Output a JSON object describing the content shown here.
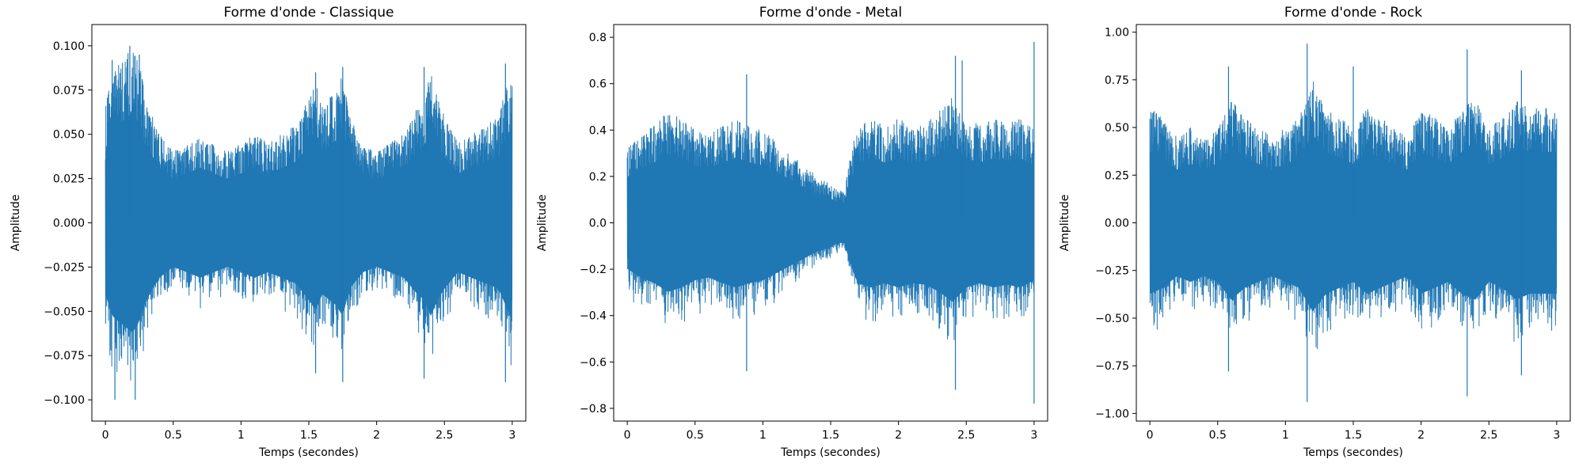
{
  "chart_data": [
    {
      "type": "line",
      "title": "Forme d'onde - Classique",
      "xlabel": "Temps (secondes)",
      "ylabel": "Amplitude",
      "xlim": [
        -0.1,
        3.1
      ],
      "ylim": [
        -0.112,
        0.112
      ],
      "xticks": [
        0,
        0.5,
        1,
        1.5,
        2,
        2.5,
        3
      ],
      "xtick_labels": [
        "0",
        "0.5",
        "1",
        "1.5",
        "2",
        "2.5",
        "3"
      ],
      "yticks": [
        -0.1,
        -0.075,
        -0.05,
        -0.025,
        0,
        0.025,
        0.05,
        0.075,
        0.1
      ],
      "ytick_labels": [
        "−0.100",
        "−0.075",
        "−0.050",
        "−0.025",
        "0.000",
        "0.025",
        "0.050",
        "0.075",
        "0.100"
      ],
      "grid": false,
      "color": "#1f77b4",
      "series": [
        {
          "envelope_time": [
            0,
            0.05,
            0.1,
            0.15,
            0.2,
            0.25,
            0.3,
            0.35,
            0.4,
            0.5,
            0.6,
            0.7,
            0.8,
            0.9,
            1.0,
            1.1,
            1.2,
            1.3,
            1.4,
            1.5,
            1.55,
            1.6,
            1.7,
            1.75,
            1.8,
            1.9,
            2.0,
            2.1,
            2.2,
            2.3,
            2.35,
            2.4,
            2.45,
            2.5,
            2.6,
            2.7,
            2.8,
            2.9,
            2.95,
            3.0
          ],
          "envelope_amplitude": [
            0.065,
            0.085,
            0.09,
            0.095,
            0.1,
            0.09,
            0.07,
            0.06,
            0.05,
            0.04,
            0.045,
            0.05,
            0.045,
            0.04,
            0.045,
            0.05,
            0.045,
            0.05,
            0.055,
            0.07,
            0.08,
            0.065,
            0.075,
            0.085,
            0.06,
            0.045,
            0.04,
            0.045,
            0.05,
            0.065,
            0.07,
            0.085,
            0.07,
            0.06,
            0.045,
            0.05,
            0.055,
            0.06,
            0.075,
            0.09
          ],
          "peaks": [
            {
              "x": 0.05,
              "y": 0.092
            },
            {
              "x": 0.07,
              "y": -0.1
            },
            {
              "x": 0.18,
              "y": 0.1
            },
            {
              "x": 0.25,
              "y": 0.095
            },
            {
              "x": 0.22,
              "y": -0.1
            },
            {
              "x": 1.55,
              "y": 0.085
            },
            {
              "x": 1.55,
              "y": -0.085
            },
            {
              "x": 1.75,
              "y": 0.088
            },
            {
              "x": 1.75,
              "y": -0.09
            },
            {
              "x": 2.35,
              "y": 0.088
            },
            {
              "x": 2.35,
              "y": -0.088
            },
            {
              "x": 2.95,
              "y": 0.09
            },
            {
              "x": 2.95,
              "y": -0.09
            }
          ]
        }
      ]
    },
    {
      "type": "line",
      "title": "Forme d'onde - Metal",
      "xlabel": "Temps (secondes)",
      "ylabel": "Amplitude",
      "xlim": [
        -0.1,
        3.1
      ],
      "ylim": [
        -0.855,
        0.855
      ],
      "xticks": [
        0,
        0.5,
        1,
        1.5,
        2,
        2.5,
        3
      ],
      "xtick_labels": [
        "0",
        "0.5",
        "1",
        "1.5",
        "2",
        "2.5",
        "3"
      ],
      "yticks": [
        -0.8,
        -0.6,
        -0.4,
        -0.2,
        0,
        0.2,
        0.4,
        0.6,
        0.8
      ],
      "ytick_labels": [
        "−0.8",
        "−0.6",
        "−0.4",
        "−0.2",
        "0.0",
        "0.2",
        "0.4",
        "0.6",
        "0.8"
      ],
      "grid": false,
      "color": "#1f77b4",
      "series": [
        {
          "envelope_time": [
            0,
            0.1,
            0.2,
            0.3,
            0.4,
            0.5,
            0.6,
            0.7,
            0.8,
            0.9,
            1.0,
            1.1,
            1.2,
            1.3,
            1.4,
            1.5,
            1.55,
            1.6,
            1.65,
            1.7,
            1.8,
            1.9,
            2.0,
            2.1,
            2.2,
            2.3,
            2.4,
            2.5,
            2.6,
            2.7,
            2.8,
            2.9,
            3.0
          ],
          "envelope_amplitude": [
            0.32,
            0.38,
            0.42,
            0.48,
            0.45,
            0.4,
            0.38,
            0.42,
            0.45,
            0.42,
            0.4,
            0.35,
            0.3,
            0.25,
            0.2,
            0.17,
            0.14,
            0.14,
            0.3,
            0.42,
            0.45,
            0.42,
            0.45,
            0.42,
            0.43,
            0.48,
            0.55,
            0.45,
            0.42,
            0.45,
            0.43,
            0.45,
            0.4
          ],
          "peaks": [
            {
              "x": 0.88,
              "y": 0.64
            },
            {
              "x": 0.88,
              "y": -0.64
            },
            {
              "x": 2.42,
              "y": 0.72
            },
            {
              "x": 2.42,
              "y": -0.72
            },
            {
              "x": 2.47,
              "y": 0.7
            },
            {
              "x": 3.0,
              "y": 0.78
            },
            {
              "x": 3.0,
              "y": -0.78
            }
          ]
        }
      ]
    },
    {
      "type": "line",
      "title": "Forme d'onde - Rock",
      "xlabel": "Temps (secondes)",
      "ylabel": "Amplitude",
      "xlim": [
        -0.1,
        3.1
      ],
      "ylim": [
        -1.04,
        1.04
      ],
      "xticks": [
        0,
        0.5,
        1,
        1.5,
        2,
        2.5,
        3
      ],
      "xtick_labels": [
        "0",
        "0.5",
        "1",
        "1.5",
        "2",
        "2.5",
        "3"
      ],
      "yticks": [
        -1,
        -0.75,
        -0.5,
        -0.25,
        0,
        0.25,
        0.5,
        0.75,
        1
      ],
      "ytick_labels": [
        "−1.00",
        "−0.75",
        "−0.50",
        "−0.25",
        "0.00",
        "0.25",
        "0.50",
        "0.75",
        "1.00"
      ],
      "grid": false,
      "color": "#1f77b4",
      "series": [
        {
          "envelope_time": [
            0,
            0.1,
            0.2,
            0.3,
            0.4,
            0.5,
            0.6,
            0.7,
            0.8,
            0.9,
            1.0,
            1.1,
            1.2,
            1.3,
            1.4,
            1.5,
            1.6,
            1.7,
            1.8,
            1.9,
            2.0,
            2.1,
            2.2,
            2.3,
            2.4,
            2.5,
            2.6,
            2.7,
            2.8,
            2.9,
            3.0
          ],
          "envelope_amplitude": [
            0.6,
            0.55,
            0.45,
            0.5,
            0.45,
            0.5,
            0.65,
            0.55,
            0.5,
            0.45,
            0.5,
            0.55,
            0.75,
            0.6,
            0.55,
            0.5,
            0.6,
            0.55,
            0.5,
            0.45,
            0.6,
            0.55,
            0.5,
            0.6,
            0.65,
            0.5,
            0.55,
            0.65,
            0.6,
            0.6,
            0.6
          ],
          "peaks": [
            {
              "x": 0.58,
              "y": 0.82
            },
            {
              "x": 0.58,
              "y": -0.78
            },
            {
              "x": 1.16,
              "y": 0.94
            },
            {
              "x": 1.16,
              "y": -0.94
            },
            {
              "x": 1.5,
              "y": 0.82
            },
            {
              "x": 2.34,
              "y": 0.91
            },
            {
              "x": 2.34,
              "y": -0.91
            },
            {
              "x": 2.74,
              "y": 0.8
            },
            {
              "x": 2.74,
              "y": -0.8
            }
          ]
        }
      ]
    }
  ]
}
